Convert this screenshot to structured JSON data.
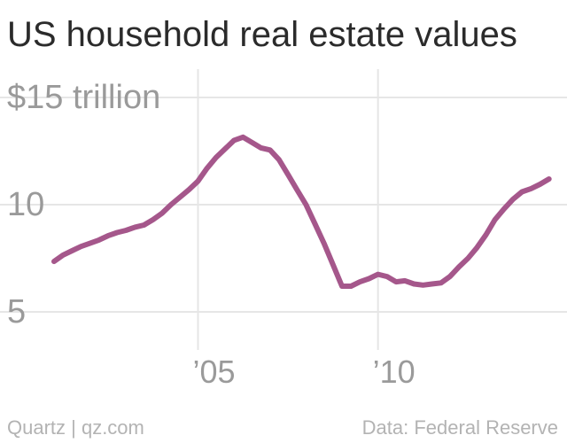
{
  "chart_data": {
    "type": "line",
    "title": "US household real estate values",
    "ylim": [
      5,
      15
    ],
    "yticks": [
      {
        "value": 15,
        "label": "$15 trillion"
      },
      {
        "value": 10,
        "label": "10"
      },
      {
        "value": 5,
        "label": "5"
      }
    ],
    "xlim": [
      1999.5,
      2015.25
    ],
    "xticks": [
      {
        "value": 2005,
        "label": "’05"
      },
      {
        "value": 2010,
        "label": "’10"
      }
    ],
    "color": "#a5578b",
    "series": [
      {
        "x": [
          2001.0,
          2001.25,
          2001.5,
          2001.75,
          2002.0,
          2002.25,
          2002.5,
          2002.75,
          2003.0,
          2003.25,
          2003.5,
          2003.75,
          2004.0,
          2004.25,
          2004.5,
          2004.75,
          2005.0,
          2005.25,
          2005.5,
          2005.75,
          2006.0,
          2006.25,
          2006.5,
          2006.75,
          2007.0,
          2007.25,
          2007.5,
          2007.75,
          2008.0,
          2008.25,
          2008.5,
          2008.75,
          2009.0,
          2009.25,
          2009.5,
          2009.75,
          2010.0,
          2010.25,
          2010.5,
          2010.75,
          2011.0,
          2011.25,
          2011.5,
          2011.75,
          2012.0,
          2012.25,
          2012.5,
          2012.75,
          2013.0,
          2013.25,
          2013.5,
          2013.75,
          2014.0,
          2014.25,
          2014.5,
          2014.75
        ],
        "values": [
          7.35,
          7.65,
          7.85,
          8.05,
          8.2,
          8.35,
          8.55,
          8.7,
          8.8,
          8.95,
          9.05,
          9.3,
          9.6,
          10.0,
          10.35,
          10.7,
          11.1,
          11.7,
          12.2,
          12.6,
          13.0,
          13.15,
          12.9,
          12.65,
          12.55,
          12.1,
          11.4,
          10.7,
          10.0,
          9.1,
          8.2,
          7.2,
          6.2,
          6.2,
          6.4,
          6.55,
          6.75,
          6.65,
          6.4,
          6.45,
          6.3,
          6.25,
          6.3,
          6.35,
          6.65,
          7.1,
          7.5,
          8.0,
          8.6,
          9.3,
          9.8,
          10.25,
          10.6,
          10.75,
          10.95,
          11.2
        ]
      }
    ]
  },
  "footer": {
    "source_left": "Quartz | qz.com",
    "source_right": "Data: Federal Reserve"
  }
}
